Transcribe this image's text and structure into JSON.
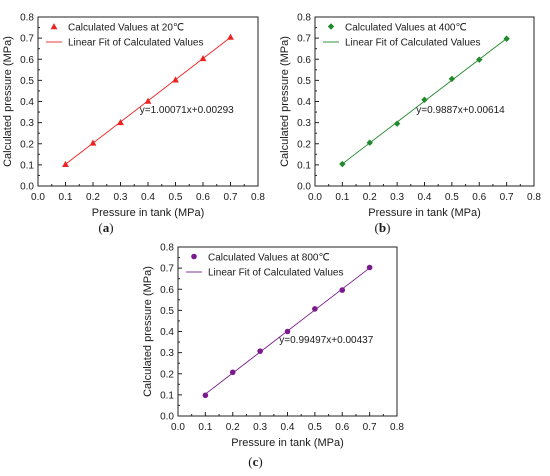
{
  "chart_data": [
    {
      "type": "scatter",
      "panel_label": "(a)",
      "xlabel": "Pressure in tank (MPa)",
      "ylabel": "Calculated pressure (MPa)",
      "xlim": [
        0.0,
        0.8
      ],
      "ylim": [
        0.0,
        0.8
      ],
      "x_ticks": [
        "0.0",
        "0.1",
        "0.2",
        "0.3",
        "0.4",
        "0.5",
        "0.6",
        "0.7",
        "0.8"
      ],
      "y_ticks": [
        "0.0",
        "0.1",
        "0.2",
        "0.3",
        "0.4",
        "0.5",
        "0.6",
        "0.7",
        "0.8"
      ],
      "grid": false,
      "legend_position": "top-left",
      "color": "#ee2222",
      "marker": "triangle",
      "annotation": "y=1.00071x+0.00293",
      "series": [
        {
          "name": "Calculated Values at 20℃",
          "kind": "points",
          "x": [
            0.1,
            0.2,
            0.3,
            0.4,
            0.5,
            0.6,
            0.7
          ],
          "y": [
            0.103,
            0.204,
            0.301,
            0.402,
            0.503,
            0.604,
            0.705
          ]
        },
        {
          "name": "Linear Fit of Calculated Values",
          "kind": "line",
          "slope": 1.00071,
          "intercept": 0.00293,
          "x_range": [
            0.1,
            0.7
          ]
        }
      ]
    },
    {
      "type": "scatter",
      "panel_label": "(b)",
      "xlabel": "Pressure in tank (MPa)",
      "ylabel": "Calculated pressure (MPa)",
      "xlim": [
        0.0,
        0.8
      ],
      "ylim": [
        0.0,
        0.8
      ],
      "x_ticks": [
        "0.0",
        "0.1",
        "0.2",
        "0.3",
        "0.4",
        "0.5",
        "0.6",
        "0.7",
        "0.8"
      ],
      "y_ticks": [
        "0.0",
        "0.1",
        "0.2",
        "0.3",
        "0.4",
        "0.5",
        "0.6",
        "0.7",
        "0.8"
      ],
      "grid": false,
      "legend_position": "top-left",
      "color": "#1f8a2a",
      "marker": "diamond",
      "annotation": "y=0.9887x+0.00614",
      "series": [
        {
          "name": "Calculated Values at 400℃",
          "kind": "points",
          "x": [
            0.1,
            0.2,
            0.3,
            0.4,
            0.5,
            0.6,
            0.7
          ],
          "y": [
            0.104,
            0.205,
            0.295,
            0.408,
            0.507,
            0.598,
            0.697
          ]
        },
        {
          "name": "Linear Fit of Calculated Values",
          "kind": "line",
          "slope": 0.9887,
          "intercept": 0.00614,
          "x_range": [
            0.1,
            0.7
          ]
        }
      ]
    },
    {
      "type": "scatter",
      "panel_label": "(c)",
      "xlabel": "Pressure in tank (MPa)",
      "ylabel": "Calculated pressure (MPa)",
      "xlim": [
        0.0,
        0.8
      ],
      "ylim": [
        0.0,
        0.8
      ],
      "x_ticks": [
        "0.0",
        "0.1",
        "0.2",
        "0.3",
        "0.4",
        "0.5",
        "0.6",
        "0.7",
        "0.8"
      ],
      "y_ticks": [
        "0.0",
        "0.1",
        "0.2",
        "0.3",
        "0.4",
        "0.5",
        "0.6",
        "0.7",
        "0.8"
      ],
      "grid": false,
      "legend_position": "top-left",
      "color": "#7a1a8c",
      "marker": "circle",
      "annotation": "y=0.99497x+0.00437",
      "series": [
        {
          "name": "Calculated Values at 800℃",
          "kind": "points",
          "x": [
            0.1,
            0.2,
            0.3,
            0.4,
            0.5,
            0.6,
            0.7
          ],
          "y": [
            0.098,
            0.207,
            0.307,
            0.4,
            0.507,
            0.596,
            0.703
          ]
        },
        {
          "name": "Linear Fit of Calculated Values",
          "kind": "line",
          "slope": 0.99497,
          "intercept": 0.00437,
          "x_range": [
            0.1,
            0.7
          ]
        }
      ]
    }
  ]
}
